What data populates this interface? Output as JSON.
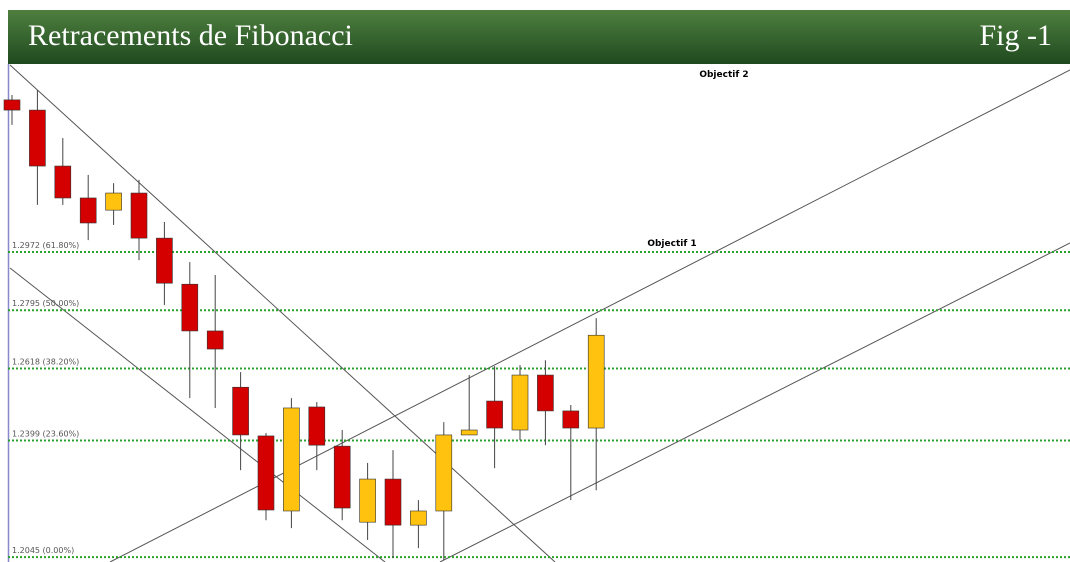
{
  "chart_data": {
    "type": "candlestick",
    "title": "Retracements de Fibonacci",
    "figure_label": "Fig -1",
    "annotations": [
      "Objectif 2",
      "Objectif 1"
    ],
    "ylim": [
      1.203,
      1.354
    ],
    "yticks": [
      {
        "value": 1.2972,
        "label": "1.2972 (61.80%)"
      },
      {
        "value": 1.2795,
        "label": "1.2795 (50.00%)"
      },
      {
        "value": 1.2618,
        "label": "1.2618 (38.20%)"
      },
      {
        "value": 1.2399,
        "label": "1.2399 (23.60%)"
      },
      {
        "value": 1.2045,
        "label": "1.2045 (0.00%)"
      }
    ],
    "grid": true,
    "grid_color": "#2ca02c",
    "up_color": "#ffc20e",
    "down_color": "#d40000",
    "open": [
      1.3434,
      1.3403,
      1.3233,
      1.3136,
      1.3099,
      1.3151,
      1.3014,
      1.2874,
      1.2732,
      1.2561,
      1.2413,
      1.2185,
      1.2501,
      1.2382,
      1.2151,
      1.2282,
      1.2142,
      1.2185,
      1.2416,
      1.2519,
      1.2431,
      1.2598,
      1.2489,
      1.2437
    ],
    "high": [
      1.3449,
      1.3464,
      1.3318,
      1.3206,
      1.3181,
      1.3191,
      1.3063,
      1.2941,
      1.2902,
      1.2607,
      1.2422,
      1.2528,
      1.2516,
      1.2431,
      1.2331,
      1.237,
      1.2218,
      1.2455,
      1.2598,
      1.2625,
      1.2628,
      1.2643,
      1.2507,
      1.2771
    ],
    "low": [
      1.3358,
      1.3115,
      1.3115,
      1.3008,
      1.3054,
      1.2947,
      1.2811,
      1.2528,
      1.2498,
      1.2309,
      1.2157,
      1.2133,
      1.2309,
      1.2157,
      1.2097,
      1.2042,
      1.2072,
      1.2036,
      1.2416,
      1.2315,
      1.24,
      1.2385,
      1.2218,
      1.2248
    ],
    "close": [
      1.3403,
      1.3233,
      1.3136,
      1.306,
      1.3151,
      1.3014,
      1.2877,
      1.2732,
      1.2677,
      1.2416,
      1.2188,
      1.2498,
      1.2385,
      1.2194,
      1.2282,
      1.2142,
      1.2185,
      1.2416,
      1.2431,
      1.2437,
      1.2598,
      1.2489,
      1.2437,
      1.2719
    ]
  }
}
